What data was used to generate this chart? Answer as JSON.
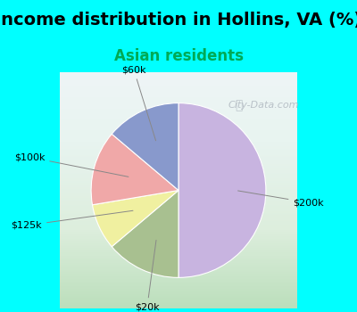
{
  "title": "Income distribution in Hollins, VA (%)",
  "subtitle": "Asian residents",
  "title_fontsize": 14,
  "subtitle_fontsize": 12,
  "title_color": "#000000",
  "subtitle_color": "#00aa55",
  "bg_color": "#00ffff",
  "chart_bg_left": "#c8e8c8",
  "chart_bg_right": "#e8f0f8",
  "slices": [
    {
      "label": "$200k",
      "value": 47,
      "color": "#c8b4e0"
    },
    {
      "label": "$20k",
      "value": 13,
      "color": "#a8c090"
    },
    {
      "label": "$125k",
      "value": 8,
      "color": "#f0f0a0"
    },
    {
      "label": "$100k",
      "value": 13,
      "color": "#f0a8a8"
    },
    {
      "label": "$60k",
      "value": 13,
      "color": "#8899cc"
    }
  ],
  "startangle": 90,
  "watermark": "City-Data.com",
  "figsize": [
    4.0,
    3.5
  ],
  "dpi": 100
}
